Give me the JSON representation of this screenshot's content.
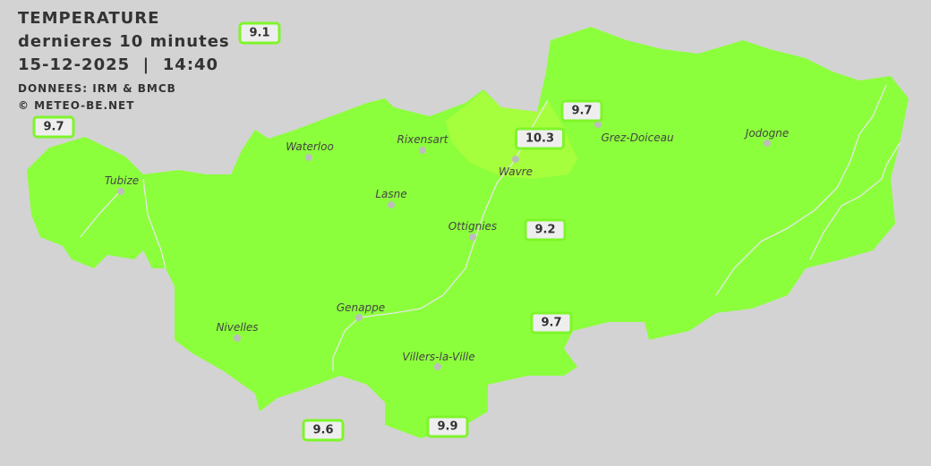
{
  "header": {
    "title": "TEMPERATURE",
    "subtitle": "dernieres 10 minutes",
    "datetime": "15-12-2025  |  14:40",
    "source": "DONNEES: IRM & BMCB",
    "copyright": "© METEO-BE.NET"
  },
  "colors": {
    "background": "#d3d3d3",
    "zone_9": "#8cff3c",
    "zone_10": "#a6ff3c",
    "label_border": "#7ef52a"
  },
  "cities": [
    {
      "name": "Waterloo"
    },
    {
      "name": "Rixensart"
    },
    {
      "name": "Wavre"
    },
    {
      "name": "Grez-Doiceau"
    },
    {
      "name": "Jodogne"
    },
    {
      "name": "Tubize"
    },
    {
      "name": "Lasne"
    },
    {
      "name": "Ottignies"
    },
    {
      "name": "Genappe"
    },
    {
      "name": "Nivelles"
    },
    {
      "name": "Villers-la-Ville"
    }
  ],
  "readings": [
    "9.1",
    "9.7",
    "9.7",
    "10.3",
    "9.2",
    "9.7",
    "9.6",
    "9.9"
  ]
}
